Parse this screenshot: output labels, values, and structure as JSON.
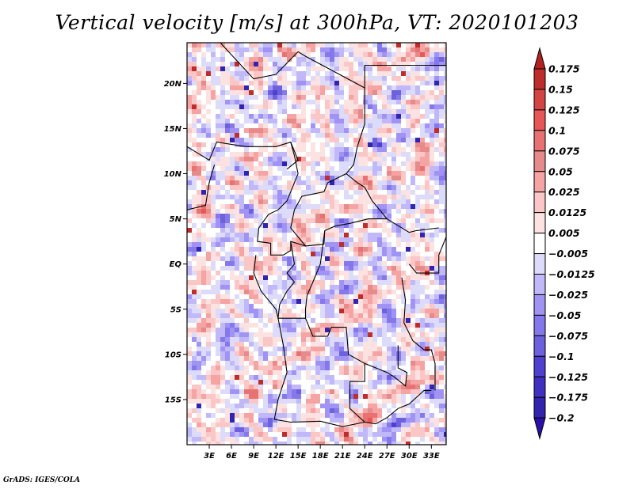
{
  "chart_data": {
    "type": "heatmap",
    "title": "Vertical velocity [m/s] at 300hPa, VT: 2020101203",
    "variable": "Vertical velocity",
    "units": "m/s",
    "level": "300hPa",
    "valid_time": "2020101203",
    "xlabel": "",
    "ylabel": "",
    "xlim_deg": [
      0,
      35
    ],
    "ylim_deg": [
      -20,
      24.5
    ],
    "x_ticks": [
      {
        "value": 3,
        "label": "3E"
      },
      {
        "value": 6,
        "label": "6E"
      },
      {
        "value": 9,
        "label": "9E"
      },
      {
        "value": 12,
        "label": "12E"
      },
      {
        "value": 15,
        "label": "15E"
      },
      {
        "value": 18,
        "label": "18E"
      },
      {
        "value": 21,
        "label": "21E"
      },
      {
        "value": 24,
        "label": "24E"
      },
      {
        "value": 27,
        "label": "27E"
      },
      {
        "value": 30,
        "label": "30E"
      },
      {
        "value": 33,
        "label": "33E"
      }
    ],
    "y_ticks": [
      {
        "value": 20,
        "label": "20N"
      },
      {
        "value": 15,
        "label": "15N"
      },
      {
        "value": 10,
        "label": "10N"
      },
      {
        "value": 5,
        "label": "5N"
      },
      {
        "value": 0,
        "label": "EQ"
      },
      {
        "value": -5,
        "label": "5S"
      },
      {
        "value": -10,
        "label": "10S"
      },
      {
        "value": -15,
        "label": "15S"
      }
    ],
    "colorbar": {
      "orientation": "vertical",
      "placement": "right",
      "extend": "both",
      "levels": [
        0.175,
        0.15,
        0.125,
        0.1,
        0.075,
        0.05,
        0.025,
        0.0125,
        0.005,
        -0.005,
        -0.0125,
        -0.025,
        -0.05,
        -0.075,
        -0.1,
        -0.125,
        -0.175,
        -0.2
      ],
      "labels": [
        "0.175",
        "0.15",
        "0.125",
        "0.1",
        "0.075",
        "0.05",
        "0.025",
        "0.0125",
        "0.005",
        "−0.005",
        "−0.0125",
        "−0.025",
        "−0.05",
        "−0.075",
        "−0.1",
        "−0.125",
        "−0.175",
        "−0.2"
      ],
      "top_triangle_color": "#b22222",
      "colors": [
        "#bf2c2c",
        "#d44444",
        "#e85656",
        "#e87272",
        "#e68a8a",
        "#f5a3a3",
        "#fac6c6",
        "#fde2e2",
        "#ffffff",
        "#dcdcfa",
        "#c0b8f8",
        "#a093f4",
        "#8478ea",
        "#6e61de",
        "#5040d2",
        "#4030c2",
        "#3224ae"
      ],
      "bottom_triangle_color": "#2a10a8"
    },
    "grid": false,
    "map_overlay": "country boundaries and coastlines (Central/Southern Africa)"
  },
  "footer": "GrADS: IGES/COLA"
}
